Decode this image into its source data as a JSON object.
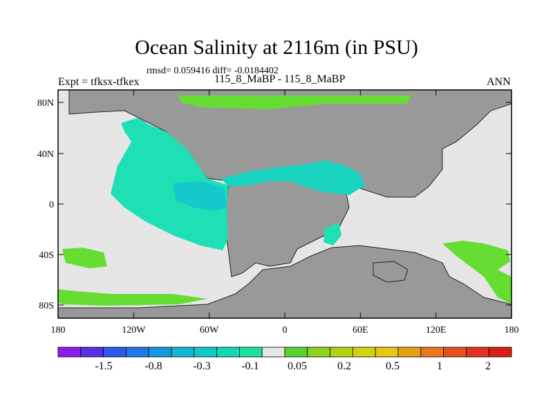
{
  "title": "Ocean Salinity at 2116m (in PSU)",
  "stats_line": "rmsd= 0.059416 diff= -0.0184402",
  "left_label": "Expt = tfksx-tfkex",
  "center_label": "115_8_MaBP - 115_8_MaBP",
  "right_label": "ANN",
  "lat_ticks": [
    "80N",
    "40N",
    "0",
    "40S",
    "80S"
  ],
  "lon_ticks": [
    "180",
    "120W",
    "60W",
    "0",
    "60E",
    "120E",
    "180"
  ],
  "colorbar": {
    "colors": [
      "#8a1ee6",
      "#5a2ee6",
      "#2a5ae6",
      "#1e78e6",
      "#1696e0",
      "#12b4d8",
      "#10c8c8",
      "#12d6b4",
      "#1ee09a",
      "#e6e6e6",
      "#5ad232",
      "#8cd21e",
      "#b4d214",
      "#d2d214",
      "#e6c814",
      "#e6a014",
      "#e6781e",
      "#e6501e",
      "#e0321e",
      "#d81e14"
    ],
    "labels": [
      "-1.5",
      "-0.8",
      "-0.3",
      "-0.1",
      "0.05",
      "0.2",
      "0.5",
      "1",
      "2"
    ]
  },
  "legend_colors": {
    "land": "#999999",
    "no_change": "#e6e6e6",
    "slight_negative": "#1ee0b4",
    "negative": "#14cdc8",
    "positive": "#66dd33"
  }
}
